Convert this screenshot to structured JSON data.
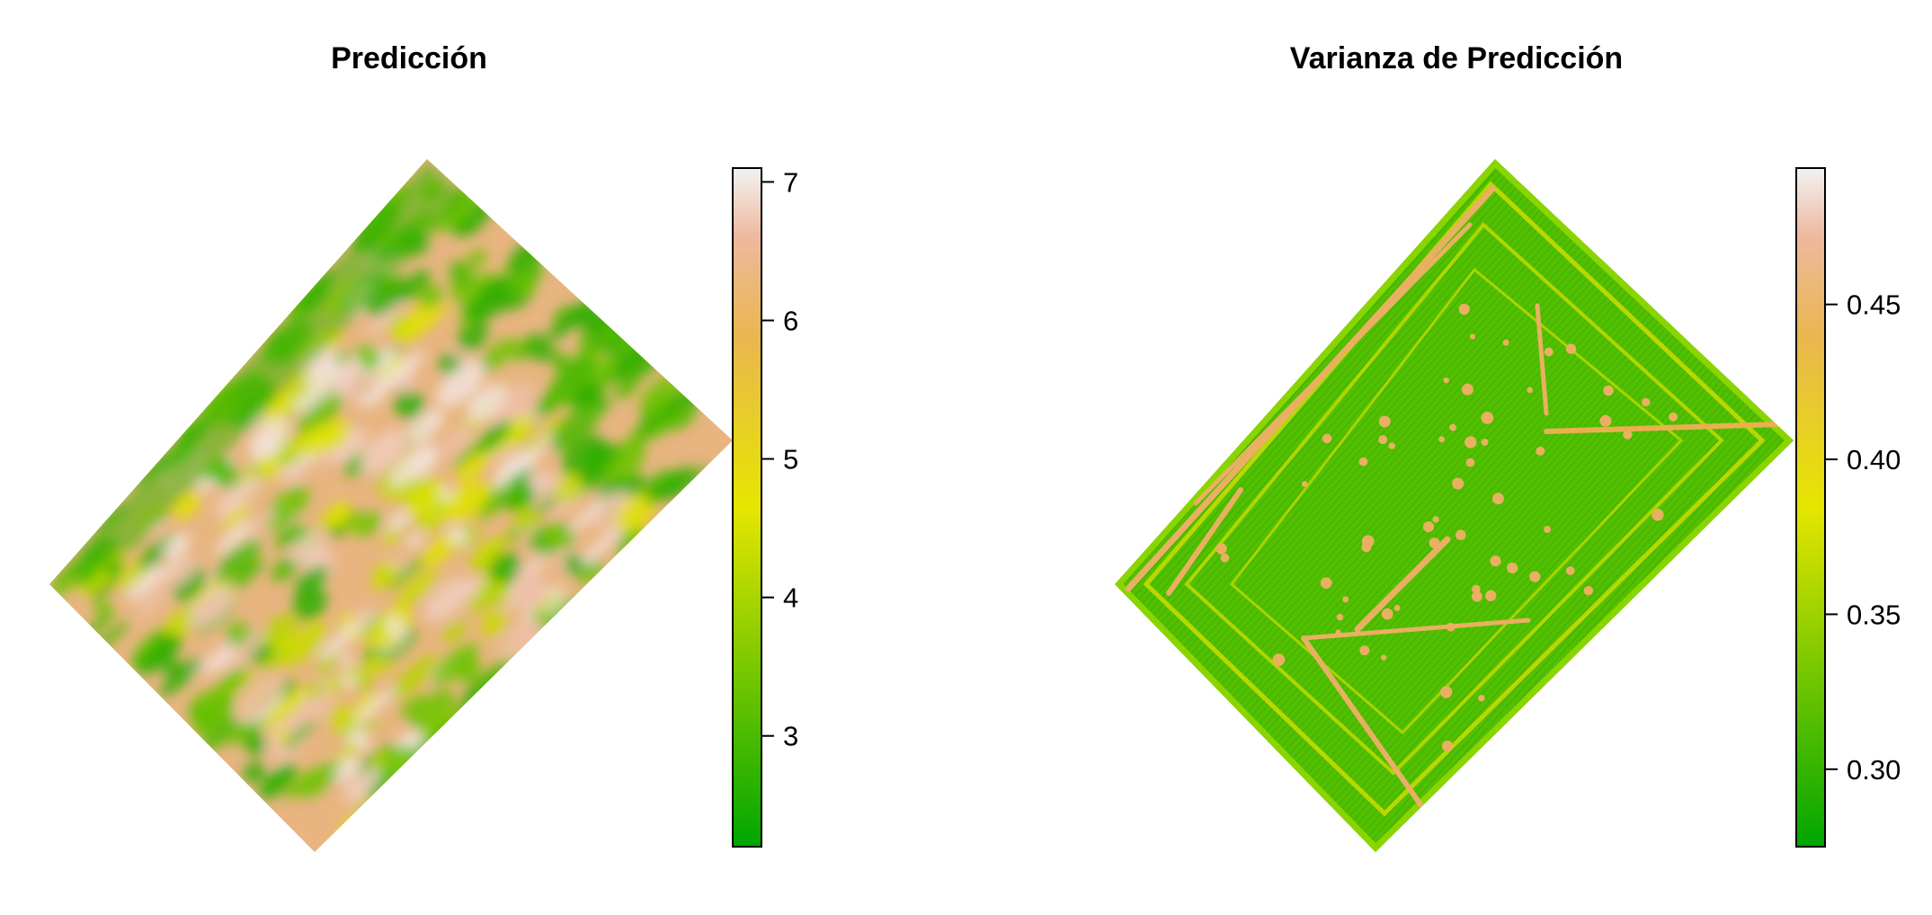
{
  "chart_data": [
    {
      "type": "heatmap",
      "title": "Predicción",
      "colorbar": {
        "min": 2.2,
        "max": 7.1,
        "ticks": [
          3,
          4,
          5,
          6,
          7
        ],
        "tick_labels": [
          "3",
          "4",
          "5",
          "6",
          "7"
        ],
        "palette": "terrain",
        "colors": [
          "#00A600",
          "#E6E600",
          "#EAB64E",
          "#EEB99F",
          "#F2F2F2"
        ]
      },
      "legend_placement": "right",
      "grid": false,
      "value_range": [
        2.2,
        7.1
      ]
    },
    {
      "type": "heatmap",
      "title": "Varianza de Predicción",
      "colorbar": {
        "min": 0.275,
        "max": 0.494,
        "ticks": [
          0.3,
          0.35,
          0.4,
          0.45
        ],
        "tick_labels": [
          "0.30",
          "0.35",
          "0.40",
          "0.45"
        ],
        "palette": "terrain",
        "colors": [
          "#00A600",
          "#E6E600",
          "#EAB64E",
          "#EEB99F",
          "#F2F2F2"
        ]
      },
      "legend_placement": "right",
      "grid": false,
      "value_range": [
        0.275,
        0.494
      ]
    }
  ]
}
